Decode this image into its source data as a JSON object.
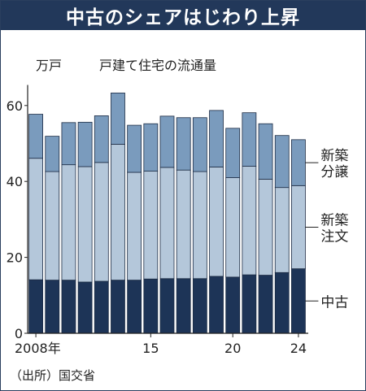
{
  "header": {
    "title": "中古のシェアはじわり上昇"
  },
  "chart_data": {
    "type": "bar",
    "stacked": true,
    "title": "戸建て住宅の流通量",
    "unit_label": "万戸",
    "source": "（出所）国交省",
    "x": [
      2008,
      2009,
      2010,
      2011,
      2012,
      2013,
      2014,
      2015,
      2016,
      2017,
      2018,
      2019,
      2020,
      2021,
      2022,
      2023,
      2024
    ],
    "x_tick_labels": [
      {
        "x": 2008,
        "label": "2008年"
      },
      {
        "x": 2015,
        "label": "15"
      },
      {
        "x": 2020,
        "label": "20"
      },
      {
        "x": 2024,
        "label": "24"
      }
    ],
    "ylim": [
      0,
      65
    ],
    "y_ticks": [
      0,
      20,
      40,
      60
    ],
    "grid": false,
    "legend_placement": "right, labels beside the last bar",
    "series": [
      {
        "name": "中古",
        "color": "#1d3457",
        "values": [
          14.1,
          14.0,
          14.0,
          13.5,
          13.7,
          14.0,
          14.0,
          14.3,
          14.4,
          14.4,
          14.4,
          15.0,
          14.8,
          15.4,
          15.3,
          16.0,
          17.0
        ]
      },
      {
        "name": "新築注文",
        "color": "#b4c7da",
        "values": [
          32.0,
          28.6,
          30.4,
          30.4,
          31.3,
          35.8,
          28.4,
          28.4,
          29.3,
          28.6,
          28.2,
          28.8,
          26.2,
          28.6,
          25.3,
          22.4,
          21.9
        ]
      },
      {
        "name": "新築分譲",
        "color": "#7a9bbd",
        "values": [
          11.6,
          9.3,
          11.1,
          11.7,
          12.3,
          13.5,
          12.4,
          12.5,
          13.5,
          13.8,
          14.2,
          14.9,
          13.0,
          14.1,
          14.6,
          13.7,
          12.1
        ]
      }
    ],
    "legend_labels": [
      {
        "series": "新築分譲",
        "lines": [
          "新築",
          "分譲"
        ]
      },
      {
        "series": "新築注文",
        "lines": [
          "新築",
          "注文"
        ]
      },
      {
        "series": "中古",
        "lines": [
          "中古"
        ]
      }
    ]
  }
}
